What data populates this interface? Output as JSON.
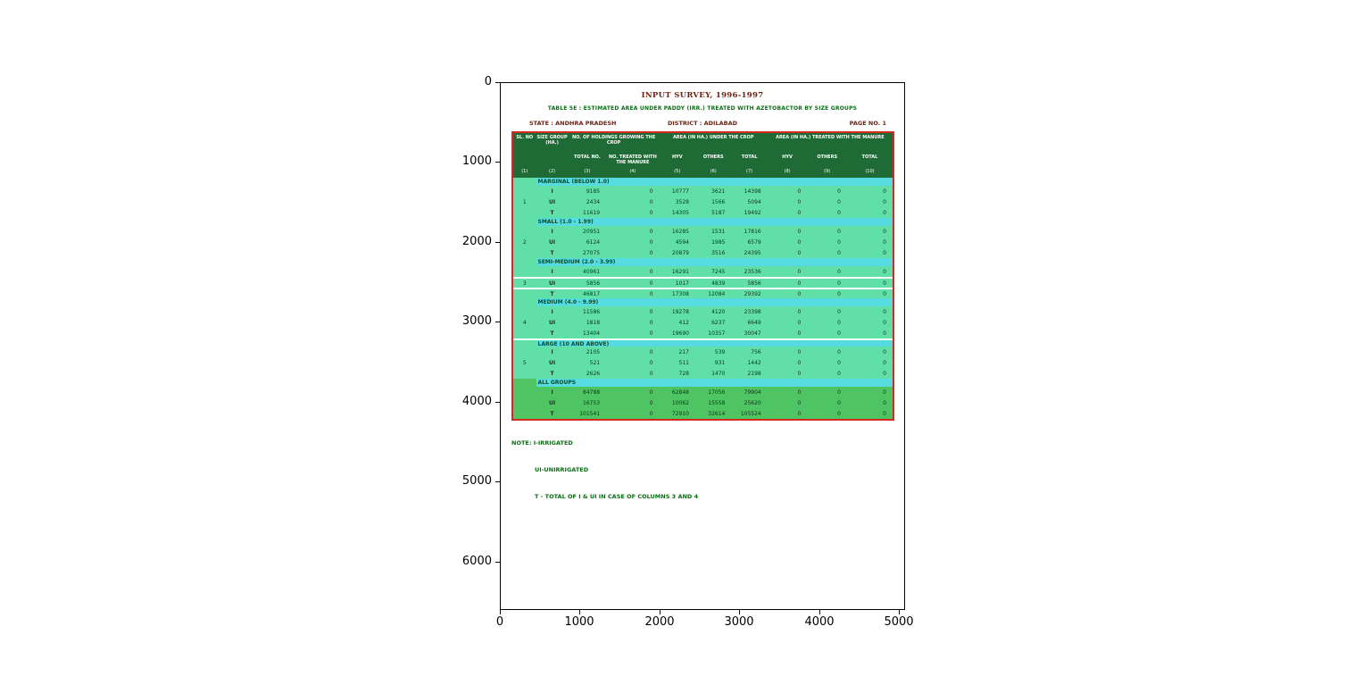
{
  "figure": {
    "x_ticks": [
      "0",
      "1000",
      "2000",
      "3000",
      "4000",
      "5000"
    ],
    "y_ticks": [
      "0",
      "1000",
      "2000",
      "3000",
      "4000",
      "5000",
      "6000"
    ]
  },
  "document": {
    "title": "INPUT SURVEY, 1996-1997",
    "subtitle": "TABLE 5E : ESTIMATED AREA UNDER PADDY (IRR.) TREATED WITH AZETOBACTOR BY SIZE GROUPS",
    "state": "STATE : ANDHRA PRADESH",
    "district": "DISTRICT : ADILABAD",
    "page": "PAGE NO. 1",
    "note_line1": "NOTE: I-IRRIGATED",
    "note_line2": "UI-UNIRRIGATED",
    "note_line3": "T - TOTAL OF I & UI IN CASE OF COLUMNS 3 AND 4"
  },
  "table": {
    "header": {
      "sl_no": "SL. NO",
      "size_group": "SIZE GROUP (HA.)",
      "group_holdings": "NO. OF HOLDINGS GROWING THE CROP",
      "group_area_crop": "AREA (IN HA.) UNDER THE CROP",
      "group_area_treated": "AREA (IN HA.) TREATED WITH THE MANURE",
      "sub_total_no": "TOTAL NO.",
      "sub_no_treated": "NO. TREATED WITH THE MANURE",
      "sub_hyv1": "HYV",
      "sub_others1": "OTHERS",
      "sub_total1": "TOTAL",
      "sub_hyv2": "HYV",
      "sub_others2": "OTHERS",
      "sub_total2": "TOTAL"
    },
    "col_numbers": [
      "(1)",
      "(2)",
      "(3)",
      "(4)",
      "(5)",
      "(6)",
      "(7)",
      "(8)",
      "(9)",
      "(10)"
    ],
    "sections": [
      {
        "sl": "1",
        "title": "MARGINAL (BELOW 1.0)",
        "rows": [
          {
            "label": "I",
            "cells": [
              "9185",
              "0",
              "10777",
              "3621",
              "14398",
              "0",
              "0",
              "0"
            ]
          },
          {
            "label": "UI",
            "cells": [
              "2434",
              "0",
              "3528",
              "1566",
              "5094",
              "0",
              "0",
              "0"
            ]
          },
          {
            "label": "T",
            "cells": [
              "11619",
              "0",
              "14305",
              "5187",
              "19492",
              "0",
              "0",
              "0"
            ]
          }
        ]
      },
      {
        "sl": "2",
        "title": "SMALL (1.0 - 1.99)",
        "rows": [
          {
            "label": "I",
            "cells": [
              "20951",
              "0",
              "16285",
              "1531",
              "17816",
              "0",
              "0",
              "0"
            ]
          },
          {
            "label": "UI",
            "cells": [
              "6124",
              "0",
              "4594",
              "1985",
              "6579",
              "0",
              "0",
              "0"
            ]
          },
          {
            "label": "T",
            "cells": [
              "27075",
              "0",
              "20879",
              "3516",
              "24395",
              "0",
              "0",
              "0"
            ]
          }
        ]
      },
      {
        "sl": "3",
        "title": "SEMI-MEDIUM (2.0 - 3.99)",
        "rows": [
          {
            "label": "I",
            "cells": [
              "40961",
              "0",
              "16291",
              "7245",
              "23536",
              "0",
              "0",
              "0"
            ]
          },
          {
            "label": "UI",
            "cells": [
              "5856",
              "0",
              "1017",
              "4839",
              "5856",
              "0",
              "0",
              "0"
            ]
          },
          {
            "label": "T",
            "cells": [
              "46817",
              "0",
              "17308",
              "12084",
              "29392",
              "0",
              "0",
              "0"
            ]
          }
        ]
      },
      {
        "sl": "4",
        "title": "MEDIUM (4.0 - 9.99)",
        "rows": [
          {
            "label": "I",
            "cells": [
              "11586",
              "0",
              "19278",
              "4120",
              "23398",
              "0",
              "0",
              "0"
            ]
          },
          {
            "label": "UI",
            "cells": [
              "1818",
              "0",
              "412",
              "6237",
              "6649",
              "0",
              "0",
              "0"
            ]
          },
          {
            "label": "T",
            "cells": [
              "13404",
              "0",
              "19690",
              "10357",
              "30047",
              "0",
              "0",
              "0"
            ]
          }
        ]
      },
      {
        "sl": "5",
        "title": "LARGE (10 AND ABOVE)",
        "rows": [
          {
            "label": "I",
            "cells": [
              "2105",
              "0",
              "217",
              "539",
              "756",
              "0",
              "0",
              "0"
            ]
          },
          {
            "label": "UI",
            "cells": [
              "521",
              "0",
              "511",
              "931",
              "1442",
              "0",
              "0",
              "0"
            ]
          },
          {
            "label": "T",
            "cells": [
              "2626",
              "0",
              "728",
              "1470",
              "2198",
              "0",
              "0",
              "0"
            ]
          }
        ]
      },
      {
        "sl": "",
        "title": "ALL GROUPS",
        "all_groups": true,
        "rows": [
          {
            "label": "I",
            "cells": [
              "84788",
              "0",
              "62848",
              "17056",
              "79904",
              "0",
              "0",
              "0"
            ]
          },
          {
            "label": "UI",
            "cells": [
              "16753",
              "0",
              "10062",
              "15558",
              "25620",
              "0",
              "0",
              "0"
            ]
          },
          {
            "label": "T",
            "cells": [
              "101541",
              "0",
              "72910",
              "32614",
              "105524",
              "0",
              "0",
              "0"
            ]
          }
        ]
      }
    ]
  },
  "colors": {
    "table_border": "#d42a1e",
    "header_green": "#1e6b35",
    "section_band_cyan": "#56dce0",
    "body_mint": "#60e0a7",
    "all_groups_green": "#4ec562",
    "title_maroon": "#6b2312",
    "note_green": "#0a6e14"
  },
  "chart_data": {
    "type": "table",
    "title": "INPUT SURVEY, 1996-1997",
    "subtitle": "TABLE 5E : ESTIMATED AREA UNDER PADDY (IRR.) TREATED WITH AZETOBACTOR BY SIZE GROUPS",
    "render_context": "table image displayed inside pixel-coordinate axes",
    "x_axis_range": [
      0,
      5000
    ],
    "y_axis_range": [
      0,
      6500
    ],
    "y_axis_inverted": true,
    "grid": false,
    "x_ticks": [
      0,
      1000,
      2000,
      3000,
      4000,
      5000
    ],
    "y_ticks": [
      0,
      1000,
      2000,
      3000,
      4000,
      5000,
      6000
    ],
    "columns": [
      "SL. NO",
      "SIZE GROUP (HA.)",
      "TOTAL NO.",
      "NO. TREATED WITH THE MANURE",
      "HYV",
      "OTHERS",
      "TOTAL",
      "HYV",
      "OTHERS",
      "TOTAL"
    ],
    "rows": [
      [
        "1",
        "MARGINAL (BELOW 1.0)",
        "I",
        9185,
        0,
        10777,
        3621,
        14398,
        0,
        0,
        0
      ],
      [
        "1",
        "MARGINAL (BELOW 1.0)",
        "UI",
        2434,
        0,
        3528,
        1566,
        5094,
        0,
        0,
        0
      ],
      [
        "1",
        "MARGINAL (BELOW 1.0)",
        "T",
        11619,
        0,
        14305,
        5187,
        19492,
        0,
        0,
        0
      ],
      [
        "2",
        "SMALL (1.0 - 1.99)",
        "I",
        20951,
        0,
        16285,
        1531,
        17816,
        0,
        0,
        0
      ],
      [
        "2",
        "SMALL (1.0 - 1.99)",
        "UI",
        6124,
        0,
        4594,
        1985,
        6579,
        0,
        0,
        0
      ],
      [
        "2",
        "SMALL (1.0 - 1.99)",
        "T",
        27075,
        0,
        20879,
        3516,
        24395,
        0,
        0,
        0
      ],
      [
        "3",
        "SEMI-MEDIUM (2.0 - 3.99)",
        "I",
        40961,
        0,
        16291,
        7245,
        23536,
        0,
        0,
        0
      ],
      [
        "3",
        "SEMI-MEDIUM (2.0 - 3.99)",
        "UI",
        5856,
        0,
        1017,
        4839,
        5856,
        0,
        0,
        0
      ],
      [
        "3",
        "SEMI-MEDIUM (2.0 - 3.99)",
        "T",
        46817,
        0,
        17308,
        12084,
        29392,
        0,
        0,
        0
      ],
      [
        "4",
        "MEDIUM (4.0 - 9.99)",
        "I",
        11586,
        0,
        19278,
        4120,
        23398,
        0,
        0,
        0
      ],
      [
        "4",
        "MEDIUM (4.0 - 9.99)",
        "UI",
        1818,
        0,
        412,
        6237,
        6649,
        0,
        0,
        0
      ],
      [
        "4",
        "MEDIUM (4.0 - 9.99)",
        "T",
        13404,
        0,
        19690,
        10357,
        30047,
        0,
        0,
        0
      ],
      [
        "5",
        "LARGE (10 AND ABOVE)",
        "I",
        2105,
        0,
        217,
        539,
        756,
        0,
        0,
        0
      ],
      [
        "5",
        "LARGE (10 AND ABOVE)",
        "UI",
        521,
        0,
        511,
        931,
        1442,
        0,
        0,
        0
      ],
      [
        "5",
        "LARGE (10 AND ABOVE)",
        "T",
        2626,
        0,
        728,
        1470,
        2198,
        0,
        0,
        0
      ],
      [
        "",
        "ALL GROUPS",
        "I",
        84788,
        0,
        62848,
        17056,
        79904,
        0,
        0,
        0
      ],
      [
        "",
        "ALL GROUPS",
        "UI",
        16753,
        0,
        10062,
        15558,
        25620,
        0,
        0,
        0
      ],
      [
        "",
        "ALL GROUPS",
        "T",
        101541,
        0,
        72910,
        32614,
        105524,
        0,
        0,
        0
      ]
    ]
  }
}
